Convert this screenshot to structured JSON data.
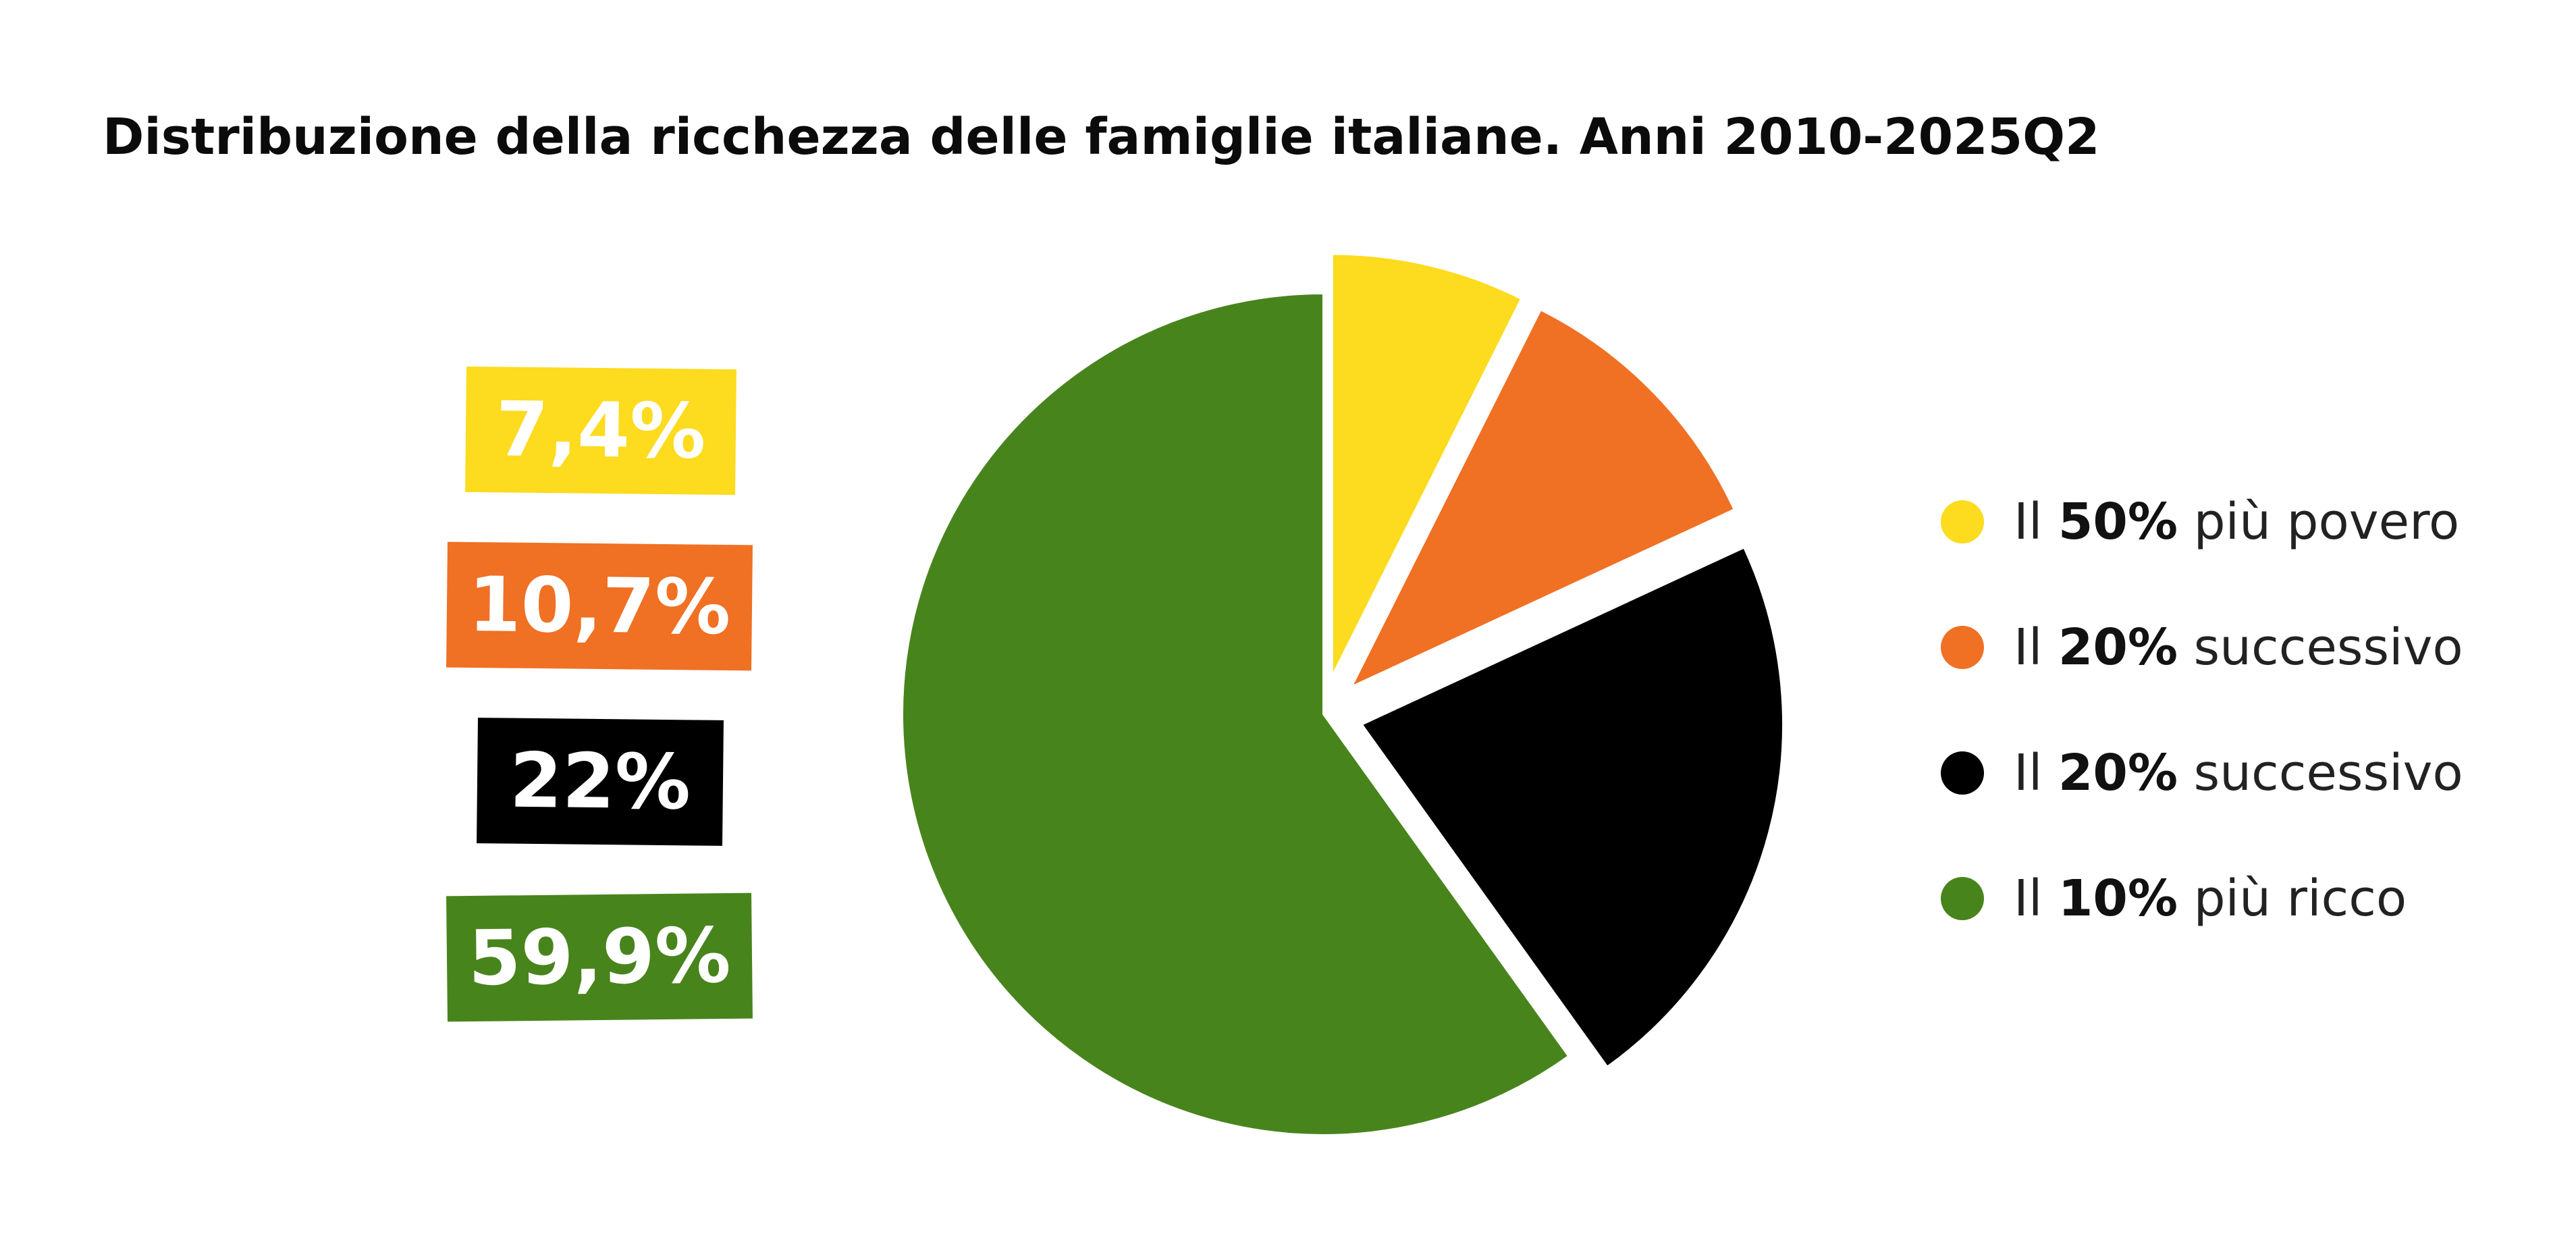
{
  "title": "Distribuzione della ricchezza delle famiglie italiane. Anni 2010-2025Q2",
  "colors": {
    "yellow": "#FDDB1E",
    "orange": "#F07024",
    "black": "#000000",
    "green": "#48841C",
    "background": "#FFFFFF"
  },
  "chart_data": {
    "type": "pie",
    "title": "Distribuzione della ricchezza delle famiglie italiane. Anni 2010-2025Q2",
    "categories": [
      "Il 50% più povero",
      "Il 20% successivo",
      "Il 20% successivo",
      "Il 10% più ricco"
    ],
    "values": [
      7.4,
      10.7,
      22,
      59.9
    ],
    "labels": [
      "7,4%",
      "10,7%",
      "22%",
      "59,9%"
    ],
    "colors": [
      "#FDDB1E",
      "#F07024",
      "#000000",
      "#48841C"
    ],
    "exploded": [
      true,
      true,
      true,
      false
    ],
    "legend_position": "right",
    "label_position": "left"
  },
  "legend": [
    {
      "prefix": "Il",
      "bold": "50%",
      "suffix": "più povero",
      "color": "#FDDB1E"
    },
    {
      "prefix": "Il",
      "bold": "20%",
      "suffix": "successivo",
      "color": "#F07024"
    },
    {
      "prefix": "Il",
      "bold": "20%",
      "suffix": "successivo",
      "color": "#000000"
    },
    {
      "prefix": "Il",
      "bold": "10%",
      "suffix": "più ricco",
      "color": "#48841C"
    }
  ]
}
